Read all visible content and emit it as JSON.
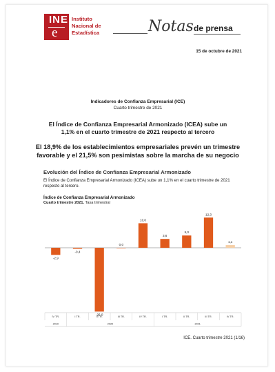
{
  "header": {
    "logo_letters_top": "INE",
    "logo_letters_bottom": "e",
    "logo_text": [
      "Instituto",
      "Nacional de",
      "Estadística"
    ],
    "notas": "Notas",
    "de_prensa": "de prensa",
    "date": "15 de octubre de 2021"
  },
  "titles": {
    "kicker": "Indicadores de Confianza Empresarial (ICE)",
    "kicker_sub": "Cuarto trimestre de 2021",
    "headline1": "El Índice de Confianza Empresarial Armonizado (ICEA) sube un 1,1% en el cuarto trimestre de 2021 respecto al tercero",
    "headline2": "El 18,9% de los establecimientos empresariales prevén un trimestre favorable y el 21,5% son pesimistas sobre la marcha de su negocio"
  },
  "section": {
    "title": "Evolución del Índice de Confianza Empresarial Armonizado",
    "body": "El Índice de Confianza Empresarial Armonizado (ICEA) sube un 1,1% en el cuarto trimestre de 2021 respecto al tercero."
  },
  "chart_caption": {
    "title": "Índice de Confianza Empresarial Armonizado",
    "sub_bold": "Cuarto trimestre 2021.",
    "sub_rest": " Tasa trimestral"
  },
  "chart_data": {
    "type": "bar",
    "categories": [
      "IV TR.",
      "I TR.",
      "II TR.",
      "III TR.",
      "IV TR.",
      "I TR.",
      "II TR.",
      "III TR.",
      "IV TR."
    ],
    "values": [
      -2.9,
      -0.4,
      -26.0,
      0.0,
      10.0,
      3.6,
      5.0,
      12.3,
      1.1
    ],
    "value_labels": [
      "-2,9",
      "-0,4",
      "-26,0",
      "0,0",
      "10,0",
      "3,6",
      "5,0",
      "12,3",
      "1,1"
    ],
    "years": [
      {
        "label": "2019",
        "from": 0,
        "to": 0
      },
      {
        "label": "2020",
        "from": 1,
        "to": 4
      },
      {
        "label": "2021",
        "from": 5,
        "to": 8
      }
    ],
    "colors": {
      "main": "#e05a1c",
      "highlight": "#f6cfa6"
    },
    "highlight_index": 8,
    "ylim": [
      -27,
      14
    ]
  },
  "footer": "ICE. Cuarto trimestre 2021 (1/16)"
}
